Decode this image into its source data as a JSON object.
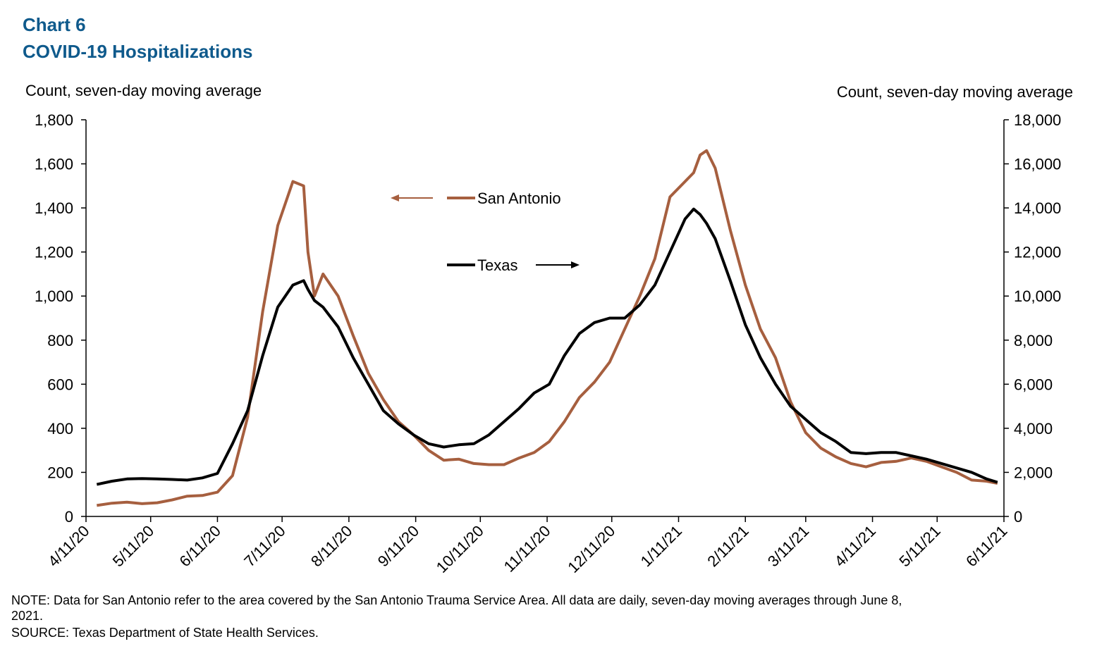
{
  "chart_data": {
    "type": "line",
    "title": "Chart 6",
    "subtitle": "COVID-19 Hospitalizations",
    "ylabel": "Count, seven-day moving average",
    "y2label": "Count, seven-day moving average",
    "note": "NOTE: Data for San Antonio refer to the area covered by the San Antonio Trauma Service Area. All data are daily, seven-day moving averages through June 8, 2021.",
    "source": "SOURCE: Texas Department of State Health Services.",
    "x": [
      "4/16/20",
      "4/23/20",
      "4/30/20",
      "5/7/20",
      "5/14/20",
      "5/21/20",
      "5/28/20",
      "6/4/20",
      "6/11/20",
      "6/18/20",
      "6/25/20",
      "7/2/20",
      "7/9/20",
      "7/16/20",
      "7/21/20",
      "7/23/20",
      "7/26/20",
      "7/30/20",
      "8/6/20",
      "8/13/20",
      "8/20/20",
      "8/27/20",
      "9/3/20",
      "9/10/20",
      "9/17/20",
      "9/24/20",
      "10/1/20",
      "10/8/20",
      "10/15/20",
      "10/22/20",
      "10/29/20",
      "11/5/20",
      "11/12/20",
      "11/19/20",
      "11/26/20",
      "12/3/20",
      "12/10/20",
      "12/17/20",
      "12/24/20",
      "12/31/20",
      "1/7/21",
      "1/14/21",
      "1/18/21",
      "1/21/21",
      "1/24/21",
      "1/28/21",
      "2/4/21",
      "2/11/21",
      "2/18/21",
      "2/25/21",
      "3/4/21",
      "3/11/21",
      "3/18/21",
      "3/25/21",
      "4/1/21",
      "4/8/21",
      "4/15/21",
      "4/22/21",
      "4/29/21",
      "5/6/21",
      "5/13/21",
      "5/20/21",
      "5/27/21",
      "6/3/21",
      "6/8/21"
    ],
    "series": [
      {
        "name": "San Antonio",
        "color": "#a65f3f",
        "axis": "y",
        "values": [
          50,
          60,
          65,
          58,
          62,
          75,
          92,
          95,
          110,
          185,
          450,
          930,
          1320,
          1520,
          1500,
          1200,
          1000,
          1100,
          1000,
          820,
          650,
          530,
          430,
          370,
          300,
          255,
          260,
          240,
          235,
          235,
          265,
          290,
          340,
          430,
          540,
          610,
          700,
          850,
          1000,
          1170,
          1450,
          1520,
          1560,
          1640,
          1660,
          1580,
          1300,
          1050,
          850,
          720,
          520,
          380,
          310,
          270,
          240,
          225,
          245,
          250,
          265,
          250,
          225,
          200,
          165,
          160,
          150
        ]
      },
      {
        "name": "Texas",
        "color": "#000000",
        "axis": "y2",
        "values": [
          1450,
          1600,
          1700,
          1720,
          1700,
          1680,
          1650,
          1750,
          1950,
          3300,
          4800,
          7300,
          9500,
          10500,
          10700,
          10300,
          9800,
          9500,
          8600,
          7200,
          6000,
          4800,
          4200,
          3700,
          3300,
          3150,
          3250,
          3300,
          3700,
          4300,
          4900,
          5600,
          6000,
          7300,
          8300,
          8800,
          9000,
          9000,
          9600,
          10500,
          12000,
          13500,
          13950,
          13700,
          13300,
          12600,
          10700,
          8700,
          7200,
          6000,
          5000,
          4400,
          3800,
          3400,
          2900,
          2850,
          2900,
          2900,
          2750,
          2600,
          2400,
          2200,
          2000,
          1700,
          1550
        ]
      }
    ],
    "xlim": [
      "4/11/20",
      "6/11/21"
    ],
    "xticks": [
      "4/11/20",
      "5/11/20",
      "6/11/20",
      "7/11/20",
      "8/11/20",
      "9/11/20",
      "10/11/20",
      "11/11/20",
      "12/11/20",
      "1/11/21",
      "2/11/21",
      "3/11/21",
      "4/11/21",
      "5/11/21",
      "6/11/21"
    ],
    "ylim": [
      0,
      1800
    ],
    "yticks": [
      0,
      200,
      400,
      600,
      800,
      {
        "value": 1000,
        "label": "1,000"
      },
      {
        "value": 1200,
        "label": "1,200"
      },
      {
        "value": 1400,
        "label": "1,400"
      },
      {
        "value": 1600,
        "label": "1,600"
      },
      {
        "value": 1800,
        "label": "1,800"
      }
    ],
    "y2lim": [
      0,
      18000
    ],
    "y2ticks": [
      0,
      {
        "value": 2000,
        "label": "2,000"
      },
      {
        "value": 4000,
        "label": "4,000"
      },
      {
        "value": 6000,
        "label": "6,000"
      },
      {
        "value": 8000,
        "label": "8,000"
      },
      {
        "value": 10000,
        "label": "10,000"
      },
      {
        "value": 12000,
        "label": "12,000"
      },
      {
        "value": 14000,
        "label": "14,000"
      },
      {
        "value": 16000,
        "label": "16,000"
      },
      {
        "value": 18000,
        "label": "18,000"
      }
    ],
    "grid": false
  }
}
